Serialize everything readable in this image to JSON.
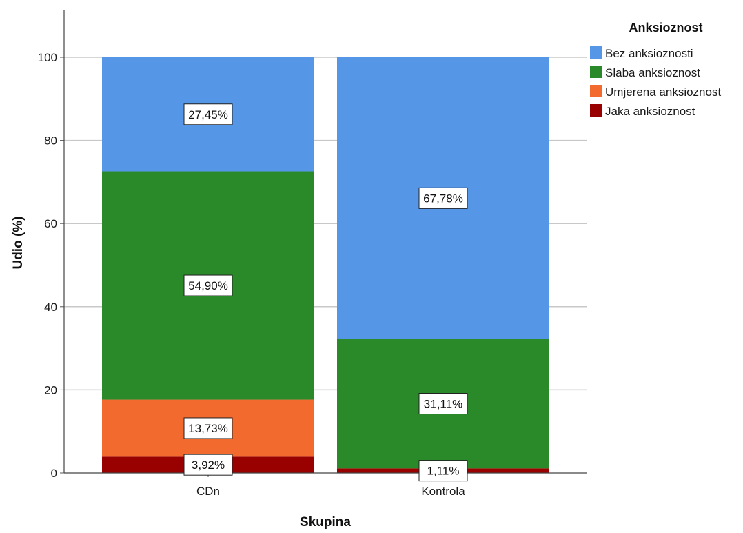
{
  "chart_data": {
    "type": "bar",
    "stacked": true,
    "categories": [
      "CDn",
      "Kontrola"
    ],
    "series": [
      {
        "name": "Jaka anksioznost",
        "color": "#990000",
        "values": [
          3.92,
          1.11
        ],
        "labels": [
          "3,92%",
          "1,11%"
        ]
      },
      {
        "name": "Umjerena anksioznost",
        "color": "#f26a2e",
        "values": [
          13.73,
          0
        ],
        "labels": [
          "13,73%",
          ""
        ]
      },
      {
        "name": "Slaba anksioznost",
        "color": "#2a8a2a",
        "values": [
          54.9,
          31.11
        ],
        "labels": [
          "54,90%",
          "31,11%"
        ]
      },
      {
        "name": "Bez anksioznosti",
        "color": "#5596e6",
        "values": [
          27.45,
          67.78
        ],
        "labels": [
          "27,45%",
          "67,78%"
        ]
      }
    ],
    "legend_title": "Anksioznost",
    "legend_order": [
      "Bez anksioznosti",
      "Slaba anksioznost",
      "Umjerena anksioznost",
      "Jaka anksioznost"
    ],
    "legend_colors": [
      "#5596e6",
      "#2a8a2a",
      "#f26a2e",
      "#990000"
    ],
    "legend_position": "top-right",
    "xlabel": "Skupina",
    "ylabel": "Udio (%)",
    "ylim": [
      0,
      110
    ],
    "yticks": [
      0,
      20,
      40,
      60,
      80,
      100
    ],
    "grid": true
  }
}
